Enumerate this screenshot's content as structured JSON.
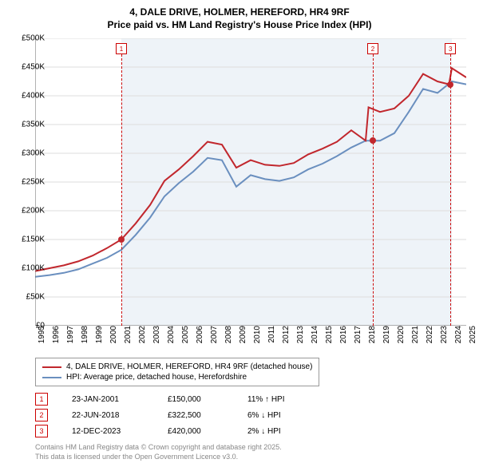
{
  "title_line1": "4, DALE DRIVE, HOLMER, HEREFORD, HR4 9RF",
  "title_line2": "Price paid vs. HM Land Registry's House Price Index (HPI)",
  "chart": {
    "type": "line",
    "background_color": "#ffffff",
    "shaded_band_color": "#eef3f8",
    "shaded_band_start_year": 2001,
    "shaded_band_end_year": 2024,
    "x_years": [
      1995,
      1996,
      1997,
      1998,
      1999,
      2000,
      2001,
      2002,
      2003,
      2004,
      2005,
      2006,
      2007,
      2008,
      2009,
      2010,
      2011,
      2012,
      2013,
      2014,
      2015,
      2016,
      2017,
      2018,
      2019,
      2020,
      2021,
      2022,
      2023,
      2024,
      2025
    ],
    "y_ticks": [
      "£0",
      "£50K",
      "£100K",
      "£150K",
      "£200K",
      "£250K",
      "£300K",
      "£350K",
      "£400K",
      "£450K",
      "£500K"
    ],
    "ylim": [
      0,
      500000
    ],
    "grid_color": "#dddddd",
    "axis_fontsize": 10,
    "series": [
      {
        "name": "property",
        "color": "#c1272d",
        "width": 2,
        "label": "4, DALE DRIVE, HOLMER, HEREFORD, HR4 9RF (detached house)",
        "points": [
          [
            1995,
            95
          ],
          [
            1996,
            100
          ],
          [
            1997,
            105
          ],
          [
            1998,
            112
          ],
          [
            1999,
            122
          ],
          [
            2000,
            135
          ],
          [
            2001,
            150
          ],
          [
            2002,
            178
          ],
          [
            2003,
            210
          ],
          [
            2004,
            252
          ],
          [
            2005,
            272
          ],
          [
            2006,
            295
          ],
          [
            2007,
            320
          ],
          [
            2008,
            315
          ],
          [
            2009,
            275
          ],
          [
            2010,
            288
          ],
          [
            2011,
            280
          ],
          [
            2012,
            278
          ],
          [
            2013,
            283
          ],
          [
            2014,
            298
          ],
          [
            2015,
            308
          ],
          [
            2016,
            320
          ],
          [
            2017,
            340
          ],
          [
            2018,
            322
          ],
          [
            2018.2,
            380
          ],
          [
            2019,
            372
          ],
          [
            2020,
            378
          ],
          [
            2021,
            400
          ],
          [
            2022,
            438
          ],
          [
            2023,
            425
          ],
          [
            2023.8,
            420
          ],
          [
            2024,
            448
          ],
          [
            2025,
            432
          ]
        ]
      },
      {
        "name": "hpi",
        "color": "#6a8fbf",
        "width": 2,
        "label": "HPI: Average price, detached house, Herefordshire",
        "points": [
          [
            1995,
            85
          ],
          [
            1996,
            88
          ],
          [
            1997,
            92
          ],
          [
            1998,
            98
          ],
          [
            1999,
            108
          ],
          [
            2000,
            118
          ],
          [
            2001,
            132
          ],
          [
            2002,
            158
          ],
          [
            2003,
            188
          ],
          [
            2004,
            225
          ],
          [
            2005,
            248
          ],
          [
            2006,
            268
          ],
          [
            2007,
            292
          ],
          [
            2008,
            288
          ],
          [
            2009,
            242
          ],
          [
            2010,
            262
          ],
          [
            2011,
            255
          ],
          [
            2012,
            252
          ],
          [
            2013,
            258
          ],
          [
            2014,
            272
          ],
          [
            2015,
            282
          ],
          [
            2016,
            295
          ],
          [
            2017,
            310
          ],
          [
            2018,
            322
          ],
          [
            2019,
            322
          ],
          [
            2020,
            335
          ],
          [
            2021,
            372
          ],
          [
            2022,
            412
          ],
          [
            2023,
            405
          ],
          [
            2024,
            425
          ],
          [
            2025,
            420
          ]
        ]
      }
    ],
    "markers": [
      {
        "num": "1",
        "year": 2001,
        "value": 150000
      },
      {
        "num": "2",
        "year": 2018.5,
        "value": 322500
      },
      {
        "num": "3",
        "year": 2023.9,
        "value": 420000
      }
    ]
  },
  "legend": {
    "items": [
      {
        "color": "#c1272d",
        "label": "4, DALE DRIVE, HOLMER, HEREFORD, HR4 9RF (detached house)"
      },
      {
        "color": "#6a8fbf",
        "label": "HPI: Average price, detached house, Herefordshire"
      }
    ]
  },
  "transactions": [
    {
      "num": "1",
      "date": "23-JAN-2001",
      "price": "£150,000",
      "pct": "11% ↑ HPI"
    },
    {
      "num": "2",
      "date": "22-JUN-2018",
      "price": "£322,500",
      "pct": "6% ↓ HPI"
    },
    {
      "num": "3",
      "date": "12-DEC-2023",
      "price": "£420,000",
      "pct": "2% ↓ HPI"
    }
  ],
  "footer_line1": "Contains HM Land Registry data © Crown copyright and database right 2025.",
  "footer_line2": "This data is licensed under the Open Government Licence v3.0."
}
